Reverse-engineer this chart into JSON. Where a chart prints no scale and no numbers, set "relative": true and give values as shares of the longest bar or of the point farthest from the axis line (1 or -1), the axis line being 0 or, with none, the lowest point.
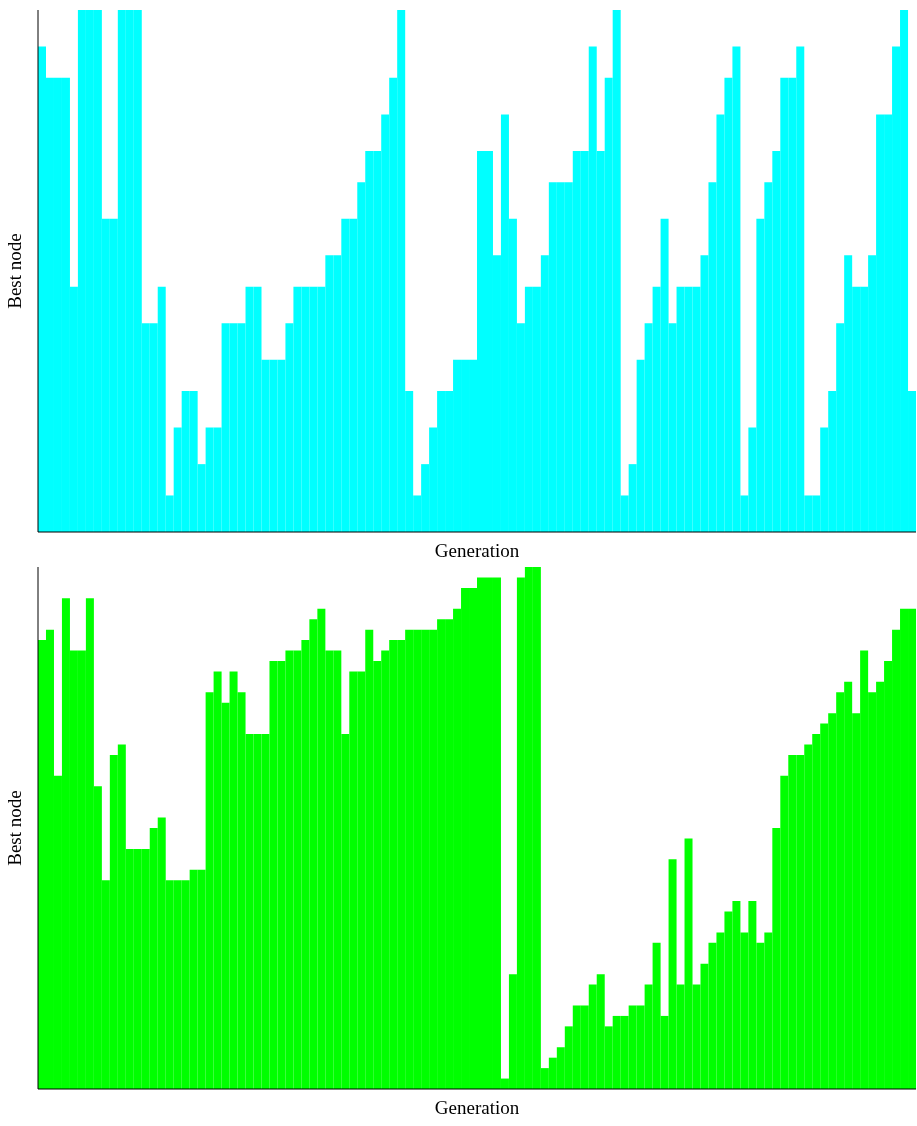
{
  "chart_data": [
    {
      "type": "bar",
      "xlabel": "Generation",
      "ylabel": "Best node",
      "relative": true,
      "color": "#00ffff",
      "categories": [
        null,
        null,
        null,
        null,
        null,
        null,
        null,
        null,
        null,
        null,
        null,
        null,
        null,
        null,
        null,
        null,
        null,
        null,
        null,
        null,
        null,
        null,
        null,
        null,
        null,
        null,
        null,
        null,
        null,
        null,
        null,
        null,
        null,
        null,
        null,
        null,
        null,
        null,
        null,
        null,
        null,
        null,
        null,
        null,
        null,
        null,
        null,
        null,
        null,
        null,
        null,
        null,
        null,
        null,
        null,
        null,
        null,
        null,
        null,
        null,
        null,
        null,
        null,
        null,
        null,
        null,
        null,
        null,
        null,
        null,
        null,
        null,
        null,
        null,
        null,
        null,
        null,
        null,
        null,
        null,
        null,
        null,
        null,
        null,
        null,
        null,
        null,
        null,
        null,
        null,
        null,
        null,
        null,
        null,
        null,
        null,
        null,
        null,
        null,
        null,
        null,
        null,
        null,
        null,
        null,
        null,
        null,
        null,
        null,
        null
      ],
      "values": [
        0.93,
        0.87,
        0.87,
        0.87,
        0.47,
        1,
        1,
        1,
        0.6,
        0.6,
        1,
        1,
        1,
        0.4,
        0.4,
        0.47,
        0.07,
        0.2,
        0.27,
        0.27,
        0.13,
        0.2,
        0.2,
        0.4,
        0.4,
        0.4,
        0.47,
        0.47,
        0.33,
        0.33,
        0.33,
        0.4,
        0.47,
        0.47,
        0.47,
        0.47,
        0.53,
        0.53,
        0.6,
        0.6,
        0.67,
        0.73,
        0.73,
        0.8,
        0.87,
        1,
        0.27,
        0.07,
        0.13,
        0.2,
        0.27,
        0.27,
        0.33,
        0.33,
        0.33,
        0.73,
        0.73,
        0.53,
        0.8,
        0.6,
        0.4,
        0.47,
        0.47,
        0.53,
        0.67,
        0.67,
        0.67,
        0.73,
        0.73,
        0.93,
        0.73,
        0.87,
        1,
        0.07,
        0.13,
        0.33,
        0.4,
        0.47,
        0.6,
        0.4,
        0.47,
        0.47,
        0.47,
        0.53,
        0.67,
        0.8,
        0.87,
        0.93,
        0.07,
        0.2,
        0.6,
        0.67,
        0.73,
        0.87,
        0.87,
        0.93,
        0.07,
        0.07,
        0.2,
        0.27,
        0.4,
        0.53,
        0.47,
        0.47,
        0.53,
        0.8,
        0.8,
        0.93,
        1,
        0.27
      ]
    },
    {
      "type": "bar",
      "xlabel": "Generation",
      "ylabel": "Best node",
      "relative": true,
      "color": "#00ff00",
      "categories": [
        null,
        null,
        null,
        null,
        null,
        null,
        null,
        null,
        null,
        null,
        null,
        null,
        null,
        null,
        null,
        null,
        null,
        null,
        null,
        null,
        null,
        null,
        null,
        null,
        null,
        null,
        null,
        null,
        null,
        null,
        null,
        null,
        null,
        null,
        null,
        null,
        null,
        null,
        null,
        null,
        null,
        null,
        null,
        null,
        null,
        null,
        null,
        null,
        null,
        null,
        null,
        null,
        null,
        null,
        null,
        null,
        null,
        null,
        null,
        null,
        null,
        null,
        null,
        null,
        null,
        null,
        null,
        null,
        null,
        null,
        null,
        null,
        null,
        null,
        null,
        null,
        null,
        null,
        null,
        null,
        null,
        null,
        null,
        null,
        null,
        null,
        null,
        null,
        null,
        null,
        null,
        null,
        null,
        null,
        null,
        null,
        null,
        null,
        null,
        null,
        null,
        null,
        null,
        null,
        null,
        null,
        null,
        null,
        null,
        null
      ],
      "values": [
        0.86,
        0.88,
        0.6,
        0.94,
        0.84,
        0.84,
        0.94,
        0.58,
        0.4,
        0.64,
        0.66,
        0.46,
        0.46,
        0.46,
        0.5,
        0.52,
        0.4,
        0.4,
        0.4,
        0.42,
        0.42,
        0.76,
        0.8,
        0.74,
        0.8,
        0.76,
        0.68,
        0.68,
        0.68,
        0.82,
        0.82,
        0.84,
        0.84,
        0.86,
        0.9,
        0.92,
        0.84,
        0.84,
        0.68,
        0.8,
        0.8,
        0.88,
        0.82,
        0.84,
        0.86,
        0.86,
        0.88,
        0.88,
        0.88,
        0.88,
        0.9,
        0.9,
        0.92,
        0.96,
        0.96,
        0.98,
        0.98,
        0.98,
        0.02,
        0.22,
        0.98,
        1,
        1,
        0.04,
        0.06,
        0.08,
        0.12,
        0.16,
        0.16,
        0.2,
        0.22,
        0.12,
        0.14,
        0.14,
        0.16,
        0.16,
        0.2,
        0.28,
        0.14,
        0.44,
        0.2,
        0.48,
        0.2,
        0.24,
        0.28,
        0.3,
        0.34,
        0.36,
        0.3,
        0.36,
        0.28,
        0.3,
        0.5,
        0.6,
        0.64,
        0.64,
        0.66,
        0.68,
        0.7,
        0.72,
        0.76,
        0.78,
        0.72,
        0.84,
        0.76,
        0.78,
        0.82,
        0.88,
        0.92,
        0.92
      ]
    }
  ]
}
